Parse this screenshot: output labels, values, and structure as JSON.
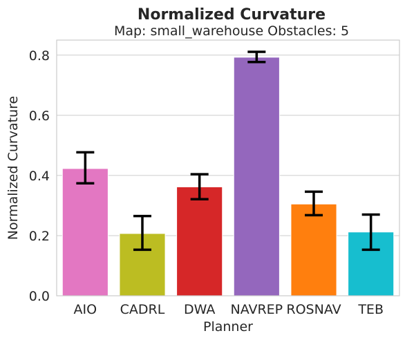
{
  "chart_data": {
    "type": "bar",
    "title": "Normalized Curvature",
    "subtitle": "Map: small_warehouse Obstacles: 5",
    "xlabel": "Planner",
    "ylabel": "Normalized Curvature",
    "ylim": [
      0,
      0.85
    ],
    "yticks": [
      "0.0",
      "0.2",
      "0.4",
      "0.6",
      "0.8"
    ],
    "grid": true,
    "categories": [
      "AIO",
      "CADRL",
      "DWA",
      "NAVREP",
      "ROSNAV",
      "TEB"
    ],
    "values": [
      0.423,
      0.207,
      0.362,
      0.793,
      0.305,
      0.212
    ],
    "error_low": [
      0.374,
      0.153,
      0.321,
      0.777,
      0.268,
      0.153
    ],
    "error_high": [
      0.477,
      0.265,
      0.404,
      0.811,
      0.346,
      0.27
    ],
    "colors": [
      "#e377c2",
      "#bcbd22",
      "#d62728",
      "#9467bd",
      "#ff7f0e",
      "#17becf"
    ]
  }
}
